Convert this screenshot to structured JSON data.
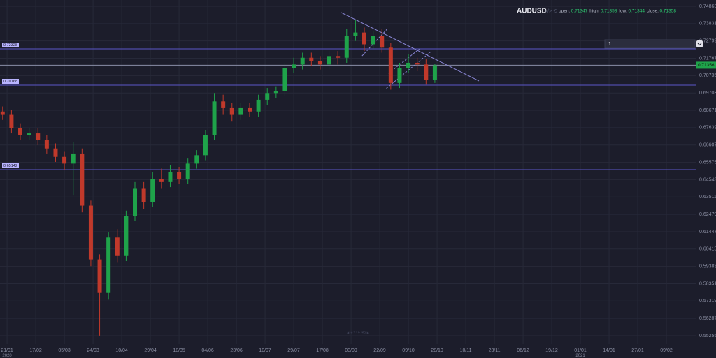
{
  "chart_data": {
    "type": "candlestick",
    "symbol": "AUDUSD",
    "ohlc_info": [
      {
        "label": "open:",
        "value": 0.71347
      },
      {
        "label": "high:",
        "value": 0.71358
      },
      {
        "label": "low:",
        "value": 0.71344
      },
      {
        "label": "close:",
        "value": 0.71358
      }
    ],
    "input_value": "1",
    "ylim": [
      0.54756,
      0.75237
    ],
    "yticks": [
      0.74863,
      0.73831,
      0.72799,
      0.71767,
      0.70735,
      0.69703,
      0.68671,
      0.67639,
      0.66607,
      0.65575,
      0.64543,
      0.63511,
      0.62479,
      0.61447,
      0.60415,
      0.59383,
      0.58351,
      0.57319,
      0.56287,
      0.55255
    ],
    "xlim": [
      -3.2,
      312.3
    ],
    "xticks": [
      {
        "value": 0,
        "label": "21/01"
      },
      {
        "value": 13,
        "label": "17/02"
      },
      {
        "value": 26,
        "label": "05/03"
      },
      {
        "value": 39,
        "label": "24/03"
      },
      {
        "value": 52,
        "label": "10/04"
      },
      {
        "value": 65,
        "label": "29/04"
      },
      {
        "value": 78,
        "label": "18/05"
      },
      {
        "value": 91,
        "label": "04/06"
      },
      {
        "value": 104,
        "label": "23/06"
      },
      {
        "value": 117,
        "label": "10/07"
      },
      {
        "value": 130,
        "label": "29/07"
      },
      {
        "value": 143,
        "label": "17/08"
      },
      {
        "value": 156,
        "label": "03/09"
      },
      {
        "value": 169,
        "label": "22/09"
      },
      {
        "value": 182,
        "label": "09/10"
      },
      {
        "value": 195,
        "label": "28/10"
      },
      {
        "value": 208,
        "label": "10/11"
      },
      {
        "value": 221,
        "label": "23/11"
      },
      {
        "value": 234,
        "label": "06/12"
      },
      {
        "value": 247,
        "label": "19/12"
      },
      {
        "value": 260,
        "label": "01/01"
      },
      {
        "value": 273,
        "label": "14/01"
      },
      {
        "value": 286,
        "label": "27/01"
      },
      {
        "value": 299,
        "label": "09/02"
      }
    ],
    "year_labels": [
      {
        "value": 0,
        "label": "2020"
      },
      {
        "value": 260,
        "label": "2021"
      }
    ],
    "up_color": "#1fa34a",
    "down_color": "#c0392b",
    "grid": true,
    "x": [
      -2,
      2,
      6,
      10,
      14,
      18,
      22,
      26,
      30,
      34,
      38,
      42,
      46,
      50,
      54,
      58,
      62,
      66,
      70,
      74,
      78,
      82,
      86,
      90,
      94,
      98,
      102,
      106,
      110,
      114,
      118,
      122,
      126,
      130,
      134,
      138,
      142,
      146,
      150,
      154,
      158,
      162,
      166,
      170,
      174,
      178,
      182,
      186,
      190,
      194
    ],
    "open": [
      0.686,
      0.684,
      0.676,
      0.672,
      0.673,
      0.669,
      0.664,
      0.659,
      0.655,
      0.661,
      0.63,
      0.598,
      0.578,
      0.611,
      0.6,
      0.624,
      0.64,
      0.632,
      0.646,
      0.644,
      0.65,
      0.646,
      0.655,
      0.66,
      0.672,
      0.692,
      0.688,
      0.684,
      0.688,
      0.686,
      0.693,
      0.697,
      0.698,
      0.712,
      0.714,
      0.718,
      0.716,
      0.714,
      0.719,
      0.718,
      0.731,
      0.733,
      0.726,
      0.731,
      0.724,
      0.703,
      0.712,
      0.715,
      0.714,
      0.705
    ],
    "high": [
      0.689,
      0.687,
      0.679,
      0.676,
      0.676,
      0.672,
      0.667,
      0.662,
      0.668,
      0.664,
      0.633,
      0.601,
      0.614,
      0.616,
      0.627,
      0.644,
      0.644,
      0.65,
      0.652,
      0.654,
      0.653,
      0.658,
      0.663,
      0.675,
      0.697,
      0.696,
      0.691,
      0.691,
      0.691,
      0.696,
      0.7,
      0.701,
      0.715,
      0.718,
      0.721,
      0.721,
      0.719,
      0.722,
      0.722,
      0.735,
      0.7405,
      0.736,
      0.734,
      0.735,
      0.727,
      0.715,
      0.72,
      0.718,
      0.717,
      0.7145
    ],
    "low": [
      0.681,
      0.673,
      0.669,
      0.669,
      0.666,
      0.661,
      0.656,
      0.651,
      0.636,
      0.626,
      0.594,
      0.5526,
      0.574,
      0.596,
      0.597,
      0.621,
      0.628,
      0.629,
      0.64,
      0.641,
      0.643,
      0.643,
      0.652,
      0.657,
      0.669,
      0.684,
      0.68,
      0.681,
      0.683,
      0.683,
      0.69,
      0.694,
      0.695,
      0.709,
      0.711,
      0.713,
      0.711,
      0.711,
      0.714,
      0.715,
      0.728,
      0.722,
      0.723,
      0.721,
      0.699,
      0.7,
      0.709,
      0.71,
      0.702,
      0.703
    ],
    "close": [
      0.684,
      0.676,
      0.672,
      0.673,
      0.669,
      0.664,
      0.659,
      0.655,
      0.661,
      0.63,
      0.598,
      0.578,
      0.611,
      0.6,
      0.624,
      0.64,
      0.632,
      0.646,
      0.644,
      0.65,
      0.646,
      0.655,
      0.66,
      0.672,
      0.692,
      0.688,
      0.684,
      0.688,
      0.686,
      0.693,
      0.697,
      0.698,
      0.712,
      0.714,
      0.718,
      0.716,
      0.714,
      0.719,
      0.718,
      0.731,
      0.733,
      0.726,
      0.731,
      0.724,
      0.703,
      0.712,
      0.715,
      0.714,
      0.705,
      0.7135
    ],
    "hlines": [
      {
        "value": 0.72328
      },
      {
        "value": 0.70168
      },
      {
        "value": 0.65142
      }
    ],
    "current_price": 0.71356,
    "trendlines": [
      {
        "x": [
          151.5,
          214
        ],
        "y": [
          0.7449,
          0.7042
        ],
        "dashed": false
      },
      {
        "x": [
          161,
          172.8
        ],
        "y": [
          0.7191,
          0.7357
        ],
        "dashed": true
      },
      {
        "x": [
          172,
          192
        ],
        "y": [
          0.6998,
          0.7214
        ],
        "dashed": true
      },
      {
        "x": [
          173,
          187
        ],
        "y": [
          0.7087,
          0.7233
        ],
        "dashed": true
      }
    ]
  }
}
